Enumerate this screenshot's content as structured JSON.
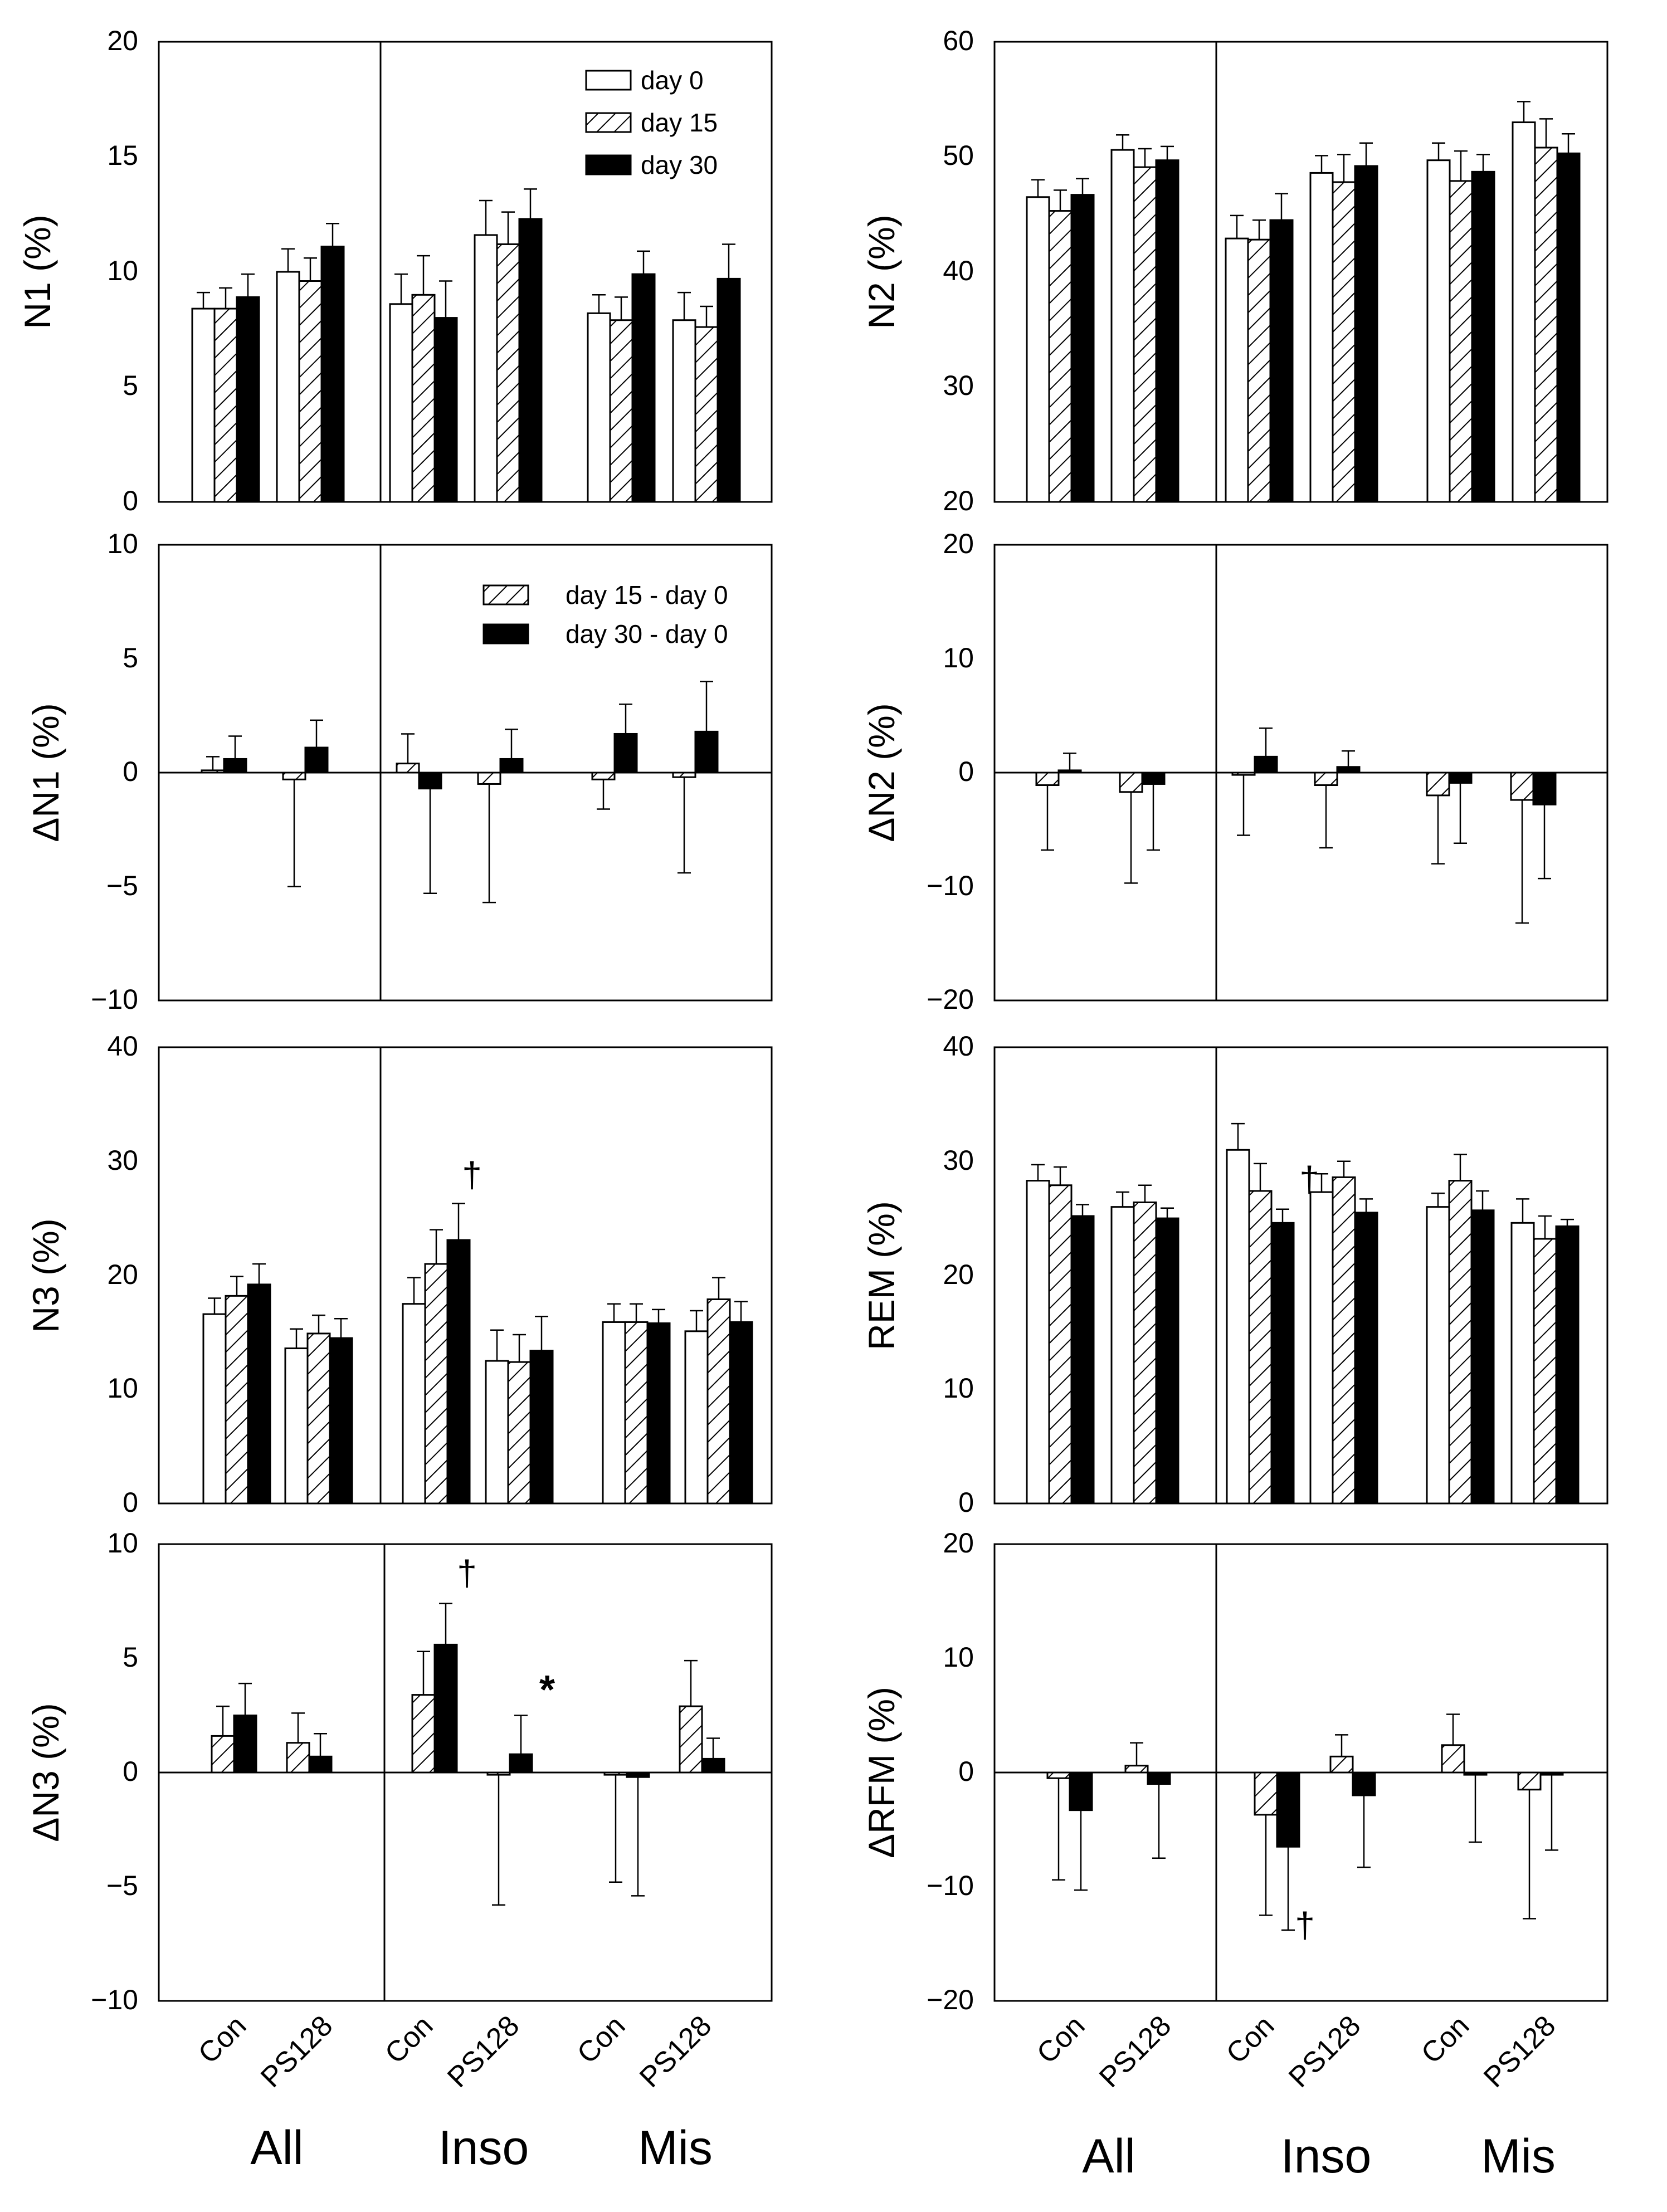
{
  "chart_data": [
    {
      "type": "bar",
      "id": "n1",
      "ylabel": "N1 (%)",
      "ylim": [
        0,
        20
      ],
      "yticks": [
        "0",
        "5",
        "10",
        "15",
        "20"
      ],
      "series": [
        {
          "name": "day 0",
          "values": [
            8.4,
            10.0,
            8.6,
            11.6,
            8.2,
            7.9
          ],
          "errors": [
            0.7,
            1.0,
            1.3,
            1.5,
            0.8,
            1.2
          ]
        },
        {
          "name": "day 15",
          "values": [
            8.4,
            9.6,
            9.0,
            11.2,
            7.9,
            7.6
          ],
          "errors": [
            0.9,
            1.0,
            1.7,
            1.4,
            1.0,
            0.9
          ]
        },
        {
          "name": "day 30",
          "values": [
            8.9,
            11.1,
            8.0,
            12.3,
            9.9,
            9.7
          ],
          "errors": [
            1.0,
            1.0,
            1.6,
            1.3,
            1.0,
            1.5
          ]
        }
      ]
    },
    {
      "type": "bar",
      "id": "n2",
      "ylabel": "N2 (%)",
      "ylim": [
        20,
        60
      ],
      "yticks": [
        "20",
        "30",
        "40",
        "50",
        "60"
      ],
      "series": [
        {
          "name": "day 0",
          "values": [
            46.5,
            50.6,
            42.9,
            48.6,
            49.7,
            53.0
          ],
          "errors": [
            1.5,
            1.3,
            2.0,
            1.5,
            1.5,
            1.8
          ]
        },
        {
          "name": "day 15",
          "values": [
            45.3,
            49.1,
            42.8,
            47.8,
            47.9,
            50.8
          ],
          "errors": [
            1.8,
            1.6,
            1.7,
            2.4,
            2.6,
            2.5
          ]
        },
        {
          "name": "day 30",
          "values": [
            46.7,
            49.7,
            44.5,
            49.2,
            48.7,
            50.3
          ],
          "errors": [
            1.4,
            1.2,
            2.3,
            2.0,
            1.5,
            1.7
          ]
        }
      ]
    },
    {
      "type": "bar",
      "id": "dn1",
      "ylabel": "ΔN1 (%)",
      "ylim": [
        -10,
        10
      ],
      "yticks": [
        "−10",
        "−5",
        "0",
        "5",
        "10"
      ],
      "series": [
        {
          "name": "day 15 - day 0",
          "values": [
            0.1,
            -0.3,
            0.4,
            -0.5,
            -0.3,
            -0.2
          ],
          "errors": [
            0.6,
            4.7,
            1.3,
            5.2,
            1.3,
            4.2
          ]
        },
        {
          "name": "day 30 - day 0",
          "values": [
            0.6,
            1.1,
            -0.7,
            0.6,
            1.7,
            1.8
          ],
          "errors": [
            1.0,
            1.2,
            4.6,
            1.3,
            1.3,
            2.2
          ]
        }
      ]
    },
    {
      "type": "bar",
      "id": "dn2",
      "ylabel": "ΔN2 (%)",
      "ylim": [
        -20,
        20
      ],
      "yticks": [
        "−20",
        "−10",
        "0",
        "10",
        "20"
      ],
      "series": [
        {
          "name": "day 15 - day 0",
          "values": [
            -1.1,
            -1.7,
            -0.2,
            -1.1,
            -2.0,
            -2.4
          ],
          "errors": [
            5.7,
            8.0,
            5.3,
            5.5,
            6.0,
            10.8
          ]
        },
        {
          "name": "day 30 - day 0",
          "values": [
            0.2,
            -1.0,
            1.4,
            0.5,
            -0.9,
            -2.8
          ],
          "errors": [
            1.5,
            5.8,
            2.5,
            1.4,
            5.3,
            6.5
          ]
        }
      ]
    },
    {
      "type": "bar",
      "id": "n3",
      "ylabel": "N3 (%)",
      "ylim": [
        0,
        40
      ],
      "yticks": [
        "0",
        "10",
        "20",
        "30",
        "40"
      ],
      "series": [
        {
          "name": "day 0",
          "values": [
            16.6,
            13.6,
            17.5,
            12.5,
            15.9,
            15.1
          ],
          "errors": [
            1.4,
            1.7,
            2.3,
            2.7,
            1.6,
            1.8
          ]
        },
        {
          "name": "day 15",
          "values": [
            18.2,
            14.9,
            21.0,
            12.4,
            15.9,
            17.9
          ],
          "errors": [
            1.7,
            1.6,
            3.0,
            2.4,
            1.6,
            1.9
          ]
        },
        {
          "name": "day 30",
          "values": [
            19.2,
            14.5,
            23.1,
            13.4,
            15.8,
            15.9
          ],
          "errors": [
            1.8,
            1.7,
            3.2,
            3.0,
            1.2,
            1.8
          ]
        }
      ]
    },
    {
      "type": "bar",
      "id": "rem",
      "ylabel": "REM (%)",
      "ylim": [
        0,
        40
      ],
      "yticks": [
        "0",
        "10",
        "20",
        "30",
        "40"
      ],
      "series": [
        {
          "name": "day 0",
          "values": [
            28.3,
            26.0,
            31.0,
            27.3,
            26.0,
            24.6
          ],
          "errors": [
            1.4,
            1.3,
            2.3,
            1.6,
            1.2,
            2.1
          ]
        },
        {
          "name": "day 15",
          "values": [
            27.9,
            26.4,
            27.4,
            28.6,
            28.3,
            23.2
          ],
          "errors": [
            1.6,
            1.5,
            2.4,
            1.4,
            2.3,
            2.0
          ]
        },
        {
          "name": "day 30",
          "values": [
            25.2,
            25.0,
            24.6,
            25.5,
            25.7,
            24.3
          ],
          "errors": [
            1.0,
            0.9,
            1.2,
            1.2,
            1.7,
            0.6
          ]
        }
      ]
    },
    {
      "type": "bar",
      "id": "dn3",
      "ylabel": "ΔN3 (%)",
      "ylim": [
        -10,
        10
      ],
      "yticks": [
        "−10",
        "−5",
        "0",
        "5",
        "10"
      ],
      "series": [
        {
          "name": "day 15 - day 0",
          "values": [
            1.6,
            1.3,
            3.4,
            -0.1,
            -0.1,
            2.9
          ],
          "errors": [
            1.3,
            1.3,
            1.9,
            5.7,
            4.7,
            2.0
          ]
        },
        {
          "name": "day 30 - day 0",
          "values": [
            2.5,
            0.7,
            5.6,
            0.8,
            -0.2,
            0.6
          ],
          "errors": [
            1.4,
            1.0,
            1.8,
            1.7,
            5.2,
            0.9
          ]
        }
      ]
    },
    {
      "type": "bar",
      "id": "drfm",
      "ylabel": "ΔRFM (%)",
      "ylim": [
        -20,
        20
      ],
      "yticks": [
        "−20",
        "−10",
        "0",
        "10",
        "20"
      ],
      "series": [
        {
          "name": "day 15 - day 0",
          "values": [
            -0.5,
            0.6,
            -3.7,
            1.4,
            2.4,
            -1.5
          ],
          "errors": [
            8.9,
            2.0,
            8.8,
            1.9,
            2.7,
            11.3
          ]
        },
        {
          "name": "day 30 - day 0",
          "values": [
            -3.3,
            -1.0,
            -6.5,
            -2.0,
            -0.2,
            -0.2
          ],
          "errors": [
            7.0,
            6.5,
            7.3,
            6.3,
            5.9,
            6.6
          ]
        }
      ]
    }
  ],
  "legend_a": [
    "day 0",
    "day 15",
    "day 30"
  ],
  "legend_b": [
    "day 15 - day 0",
    "day 30 - day 0"
  ],
  "annotations": {
    "dagger": "†",
    "star": "*"
  },
  "x_axis": {
    "subgroups": [
      "Con",
      "PS128",
      "Con",
      "PS128",
      "Con",
      "PS128"
    ],
    "groups": [
      "All",
      "Inso",
      "Mis"
    ]
  }
}
